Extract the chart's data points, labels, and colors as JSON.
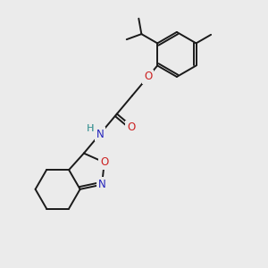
{
  "bg_color": "#ebebeb",
  "bond_color": "#1a1a1a",
  "N_color": "#2222bb",
  "O_color": "#cc2222",
  "H_color": "#4a9a9a",
  "line_width": 1.4,
  "figsize": [
    3.0,
    3.0
  ],
  "dpi": 100,
  "xlim": [
    0,
    10
  ],
  "ylim": [
    0,
    10
  ]
}
